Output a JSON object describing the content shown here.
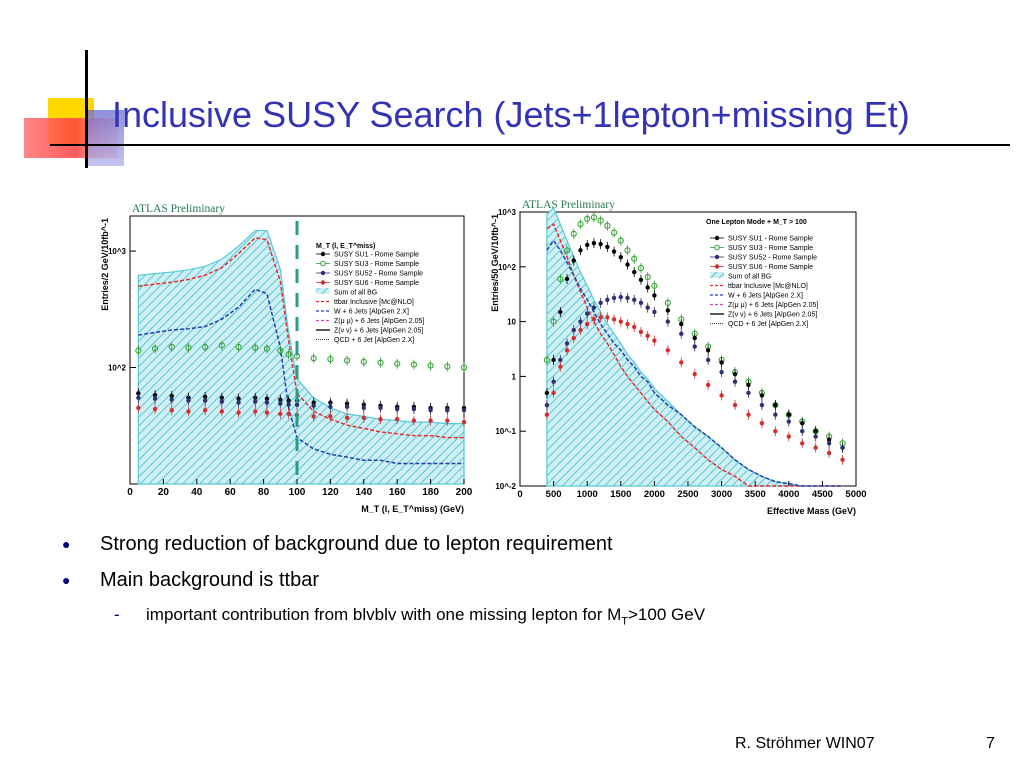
{
  "slide": {
    "title": "Inclusive SUSY Search (Jets+1lepton+missing Et)",
    "footer_author": "R. Ströhmer WIN07",
    "page_number": "7",
    "colors": {
      "title": "#3333b3",
      "bullet": "#00007f",
      "accent_yellow": "#ffd800",
      "accent_red": "#ff4040",
      "accent_blue": "#5050c0"
    }
  },
  "bullets": [
    {
      "text": "Strong reduction of background due to lepton requirement",
      "level": 1
    },
    {
      "text": "Main background is ttbar",
      "level": 1
    },
    {
      "text_prefix": "important contribution from blvblv with one missing lepton for M",
      "text_sub": "T",
      "text_suffix": ">100 GeV",
      "level": 2
    }
  ],
  "chart_data": [
    {
      "type": "histogram",
      "watermark": "ATLAS Preliminary",
      "xlabel": "M_T (l, E_T^miss) (GeV)",
      "ylabel": "Entries/2 GeV/10fb^-1",
      "xlim": [
        0,
        200
      ],
      "ylim": [
        10,
        2000
      ],
      "yscale": "log",
      "xticks": [
        "0",
        "20",
        "40",
        "60",
        "80",
        "100",
        "120",
        "140",
        "160",
        "180",
        "200"
      ],
      "yticks": [
        "10^2",
        "10^3"
      ],
      "cut_line_x": 100,
      "legend_title": "M_T (l, E_T^miss)",
      "legend_placement": "top-right",
      "legend": [
        "SUSY SU1 - Rome Sample",
        "SUSY SU3 - Rome Sample",
        "SUSY SU52 - Rome Sample",
        "SUSY SU6 - Rome Sample",
        "Sum of all BG",
        "ttbar Inclusive [Mc@NLO]",
        "W + 6 Jets [AlpGen 2.X]",
        "Z(μ μ) + 6 Jets [AlpGen 2.05]",
        "Z(ν ν) + 6 Jets [AlpGen 2.05]",
        "QCD + 6 Jet [AlpGen 2.X]"
      ],
      "x": [
        5,
        15,
        25,
        35,
        45,
        55,
        65,
        75,
        82,
        90,
        95,
        100,
        110,
        120,
        130,
        140,
        150,
        160,
        170,
        180,
        190,
        200
      ],
      "series": [
        {
          "name": "Sum of all BG",
          "values": [
            620,
            640,
            660,
            690,
            740,
            850,
            1100,
            1500,
            1500,
            700,
            200,
            80,
            55,
            45,
            40,
            38,
            36,
            35,
            34,
            34,
            33,
            33
          ]
        },
        {
          "name": "ttbar Inclusive [Mc@NLO]",
          "values": [
            500,
            520,
            540,
            570,
            620,
            720,
            950,
            1300,
            1250,
            550,
            170,
            60,
            42,
            36,
            32,
            30,
            28,
            27,
            26,
            26,
            25,
            25
          ]
        },
        {
          "name": "W + 6 Jets [AlpGen 2.X]",
          "values": [
            190,
            200,
            210,
            215,
            225,
            260,
            330,
            470,
            430,
            150,
            45,
            25,
            20,
            18,
            17,
            16,
            16,
            15,
            15,
            15,
            15,
            15
          ]
        },
        {
          "name": "SUSY SU3 - Rome Sample",
          "values": [
            140,
            145,
            150,
            148,
            150,
            155,
            150,
            148,
            145,
            140,
            130,
            125,
            120,
            118,
            115,
            112,
            110,
            108,
            106,
            104,
            102,
            100
          ]
        },
        {
          "name": "SUSY SU1 - Rome Sample",
          "values": [
            60,
            58,
            57,
            55,
            56,
            55,
            54,
            55,
            54,
            53,
            52,
            52,
            50,
            50,
            49,
            48,
            47,
            46,
            46,
            45,
            45,
            45
          ]
        },
        {
          "name": "SUSY SU52 - Rome Sample",
          "values": [
            55,
            54,
            53,
            52,
            52,
            51,
            50,
            51,
            50,
            49,
            48,
            48,
            47,
            46,
            46,
            45,
            45,
            44,
            44,
            43,
            43,
            43
          ]
        },
        {
          "name": "SUSY SU6 - Rome Sample",
          "values": [
            45,
            44,
            43,
            42,
            43,
            42,
            41,
            42,
            41,
            40,
            40,
            39,
            38,
            38,
            37,
            37,
            36,
            36,
            35,
            35,
            35,
            34
          ]
        }
      ]
    },
    {
      "type": "histogram",
      "watermark": "ATLAS Preliminary",
      "title": "One Lepton Mode + M_T > 100",
      "xlabel": "Effective Mass (GeV)",
      "ylabel": "Entries/50 GeV/10fb^-1",
      "xlim": [
        0,
        5000
      ],
      "ylim": [
        0.01,
        1000
      ],
      "yscale": "log",
      "xticks": [
        "0",
        "500",
        "1000",
        "1500",
        "2000",
        "2500",
        "3000",
        "3500",
        "4000",
        "4500",
        "5000"
      ],
      "yticks": [
        "10^-2",
        "10^-1",
        "1",
        "10",
        "10^2",
        "10^3"
      ],
      "legend_placement": "top-right",
      "legend": [
        "SUSY SU1 - Rome Sample",
        "SUSY SU3 - Rome Sample",
        "SUSY SU52 - Rome Sample",
        "SUSY SU6 - Rome Sample",
        "Sum of all BG",
        "ttbar Inclusive [Mc@NLO]",
        "W + 6 Jets [AlpGen 2.X]",
        "Z(μ μ) + 6 Jets [AlpGen 2.05]",
        "Z(ν ν) + 6 Jets [AlpGen 2.05]",
        "QCD + 6 Jet [AlpGen 2.X]"
      ],
      "x": [
        400,
        500,
        600,
        700,
        800,
        900,
        1000,
        1100,
        1200,
        1300,
        1400,
        1500,
        1600,
        1700,
        1800,
        1900,
        2000,
        2200,
        2400,
        2600,
        2800,
        3000,
        3200,
        3400,
        3600,
        3800,
        4000,
        4200,
        4400,
        4600,
        4800
      ],
      "series": [
        {
          "name": "Sum of all BG",
          "values": [
            900,
            1200,
            600,
            300,
            150,
            80,
            45,
            25,
            15,
            9,
            6,
            4,
            2.5,
            1.8,
            1.2,
            0.9,
            0.6,
            0.35,
            0.2,
            0.12,
            0.08,
            0.05,
            0.03,
            0.02,
            0.015,
            0.012,
            0.011,
            0.01,
            0.01,
            0.01,
            0.01
          ]
        },
        {
          "name": "ttbar Inclusive [Mc@NLO]",
          "values": [
            500,
            600,
            300,
            150,
            70,
            35,
            18,
            10,
            6,
            4,
            2.5,
            1.5,
            1,
            0.7,
            0.5,
            0.35,
            0.25,
            0.15,
            0.08,
            0.05,
            0.03,
            0.02,
            0.015,
            0.01,
            0.01,
            0.01,
            0.01,
            0.01,
            0.01,
            0.01,
            0.01
          ]
        },
        {
          "name": "W + 6 Jets [AlpGen 2.X]",
          "values": [
            200,
            300,
            200,
            120,
            70,
            40,
            25,
            15,
            9,
            6,
            4,
            3,
            2,
            1.5,
            1,
            0.8,
            0.5,
            0.3,
            0.2,
            0.12,
            0.08,
            0.05,
            0.03,
            0.02,
            0.015,
            0.012,
            0.011,
            0.01,
            0.01,
            0.01,
            0.01
          ]
        },
        {
          "name": "SUSY SU3 - Rome Sample",
          "values": [
            2,
            10,
            60,
            200,
            400,
            600,
            750,
            800,
            700,
            560,
            420,
            300,
            200,
            140,
            95,
            65,
            45,
            22,
            11,
            6,
            3.5,
            2,
            1.2,
            0.8,
            0.5,
            0.3,
            0.2,
            0.15,
            0.1,
            0.08,
            0.06
          ]
        },
        {
          "name": "SUSY SU1 - Rome Sample",
          "values": [
            0.5,
            2,
            15,
            60,
            130,
            200,
            250,
            270,
            260,
            230,
            190,
            150,
            110,
            80,
            58,
            42,
            30,
            16,
            9,
            5,
            3,
            1.8,
            1.1,
            0.7,
            0.45,
            0.3,
            0.2,
            0.14,
            0.1,
            0.07,
            0.05
          ]
        },
        {
          "name": "SUSY SU52 - Rome Sample",
          "values": [
            0.3,
            0.8,
            2,
            4,
            7,
            10,
            14,
            18,
            22,
            25,
            27,
            28,
            27,
            25,
            22,
            18,
            15,
            10,
            6,
            3.5,
            2,
            1.2,
            0.8,
            0.5,
            0.3,
            0.2,
            0.15,
            0.1,
            0.08,
            0.06,
            0.05
          ]
        },
        {
          "name": "SUSY SU6 - Rome Sample",
          "values": [
            0.2,
            0.5,
            1.5,
            3,
            5,
            7,
            9,
            11,
            12,
            12,
            11,
            10,
            9,
            8,
            6.5,
            5.5,
            4.5,
            3,
            1.8,
            1.1,
            0.7,
            0.45,
            0.3,
            0.2,
            0.14,
            0.1,
            0.08,
            0.06,
            0.05,
            0.04,
            0.03
          ]
        }
      ]
    }
  ]
}
